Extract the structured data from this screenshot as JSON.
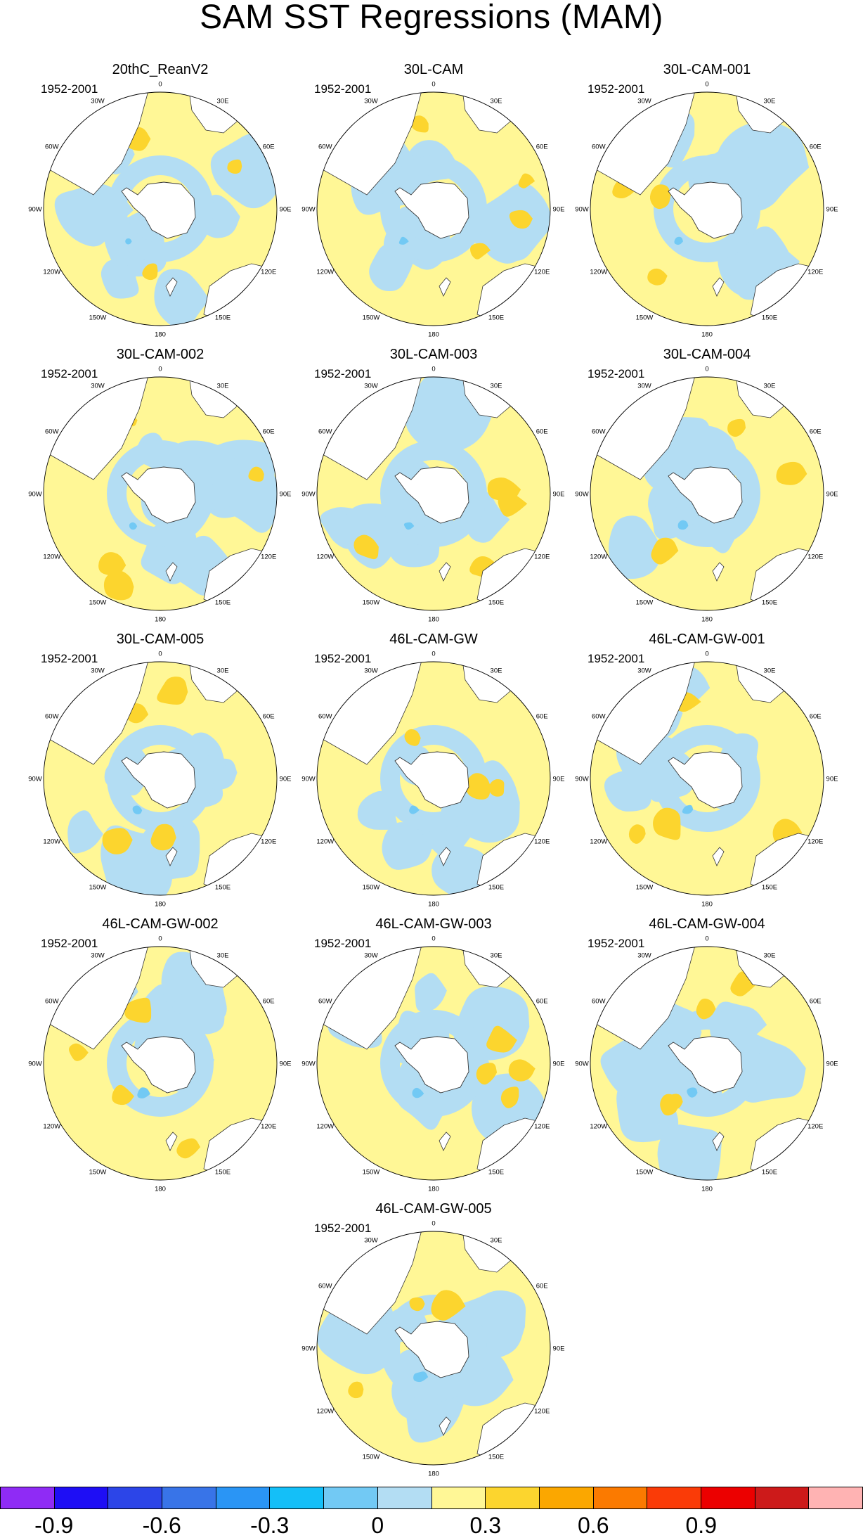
{
  "title": "SAM SST Regressions (MAM)",
  "period": "1952-2001",
  "lon_labels": [
    "0",
    "30E",
    "60E",
    "90E",
    "120E",
    "150E",
    "180",
    "150W",
    "120W",
    "90W",
    "60W",
    "30W"
  ],
  "panels": [
    {
      "name": "20thC_ReanV2",
      "period": "1952-2001"
    },
    {
      "name": "30L-CAM",
      "period": "1952-2001"
    },
    {
      "name": "30L-CAM-001",
      "period": "1952-2001"
    },
    {
      "name": "30L-CAM-002",
      "period": "1952-2001"
    },
    {
      "name": "30L-CAM-003",
      "period": "1952-2001"
    },
    {
      "name": "30L-CAM-004",
      "period": "1952-2001"
    },
    {
      "name": "30L-CAM-005",
      "period": "1952-2001"
    },
    {
      "name": "46L-CAM-GW",
      "period": "1952-2001"
    },
    {
      "name": "46L-CAM-GW-001",
      "period": "1952-2001"
    },
    {
      "name": "46L-CAM-GW-002",
      "period": "1952-2001"
    },
    {
      "name": "46L-CAM-GW-003",
      "period": "1952-2001"
    },
    {
      "name": "46L-CAM-GW-004",
      "period": "1952-2001"
    },
    {
      "name": "46L-CAM-GW-005",
      "period": "1952-2001"
    }
  ],
  "colorbar": {
    "colors": [
      "#8F2BF5",
      "#1E0EF5",
      "#2C45E8",
      "#3874E8",
      "#2A95F5",
      "#14BFF8",
      "#72C9F4",
      "#B3DDF3",
      "#FFF796",
      "#FCD52E",
      "#FBA700",
      "#FB7A00",
      "#FA3B07",
      "#EC0000",
      "#CD1A1A",
      "#FFB3B3"
    ],
    "tick_labels": [
      "-0.9",
      "-0.6",
      "-0.3",
      "0",
      "0.3",
      "0.6",
      "0.9"
    ],
    "levels": [
      -1.05,
      -0.9,
      -0.75,
      -0.6,
      -0.45,
      -0.3,
      -0.15,
      0,
      0.15,
      0.3,
      0.45,
      0.6,
      0.75,
      0.9,
      1.05
    ]
  }
}
